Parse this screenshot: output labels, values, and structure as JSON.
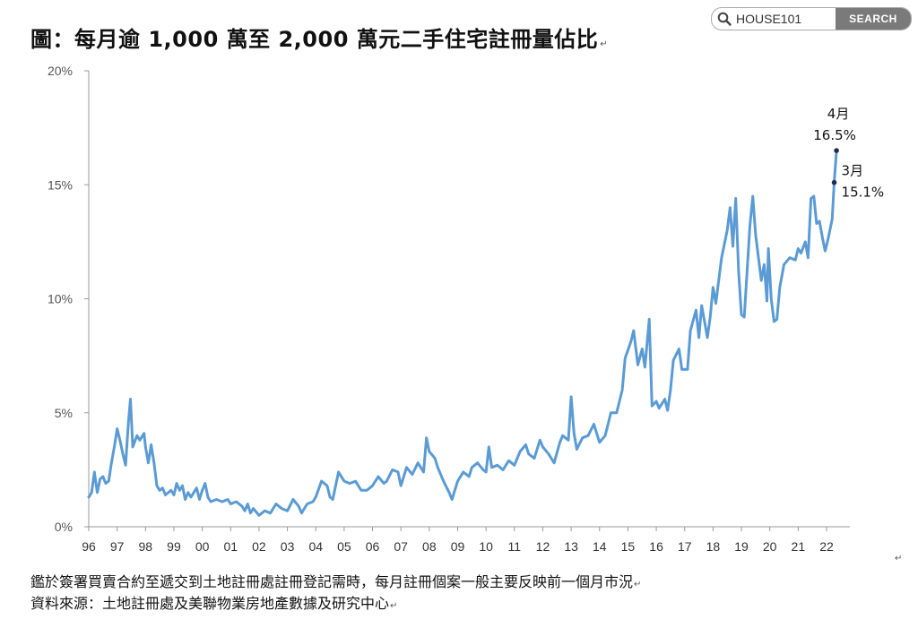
{
  "title": "圖：每月逾 1,000 萬至 2,000 萬元二手住宅註冊量佔比",
  "return_mark": "↵",
  "search": {
    "brand": "HOUSE101",
    "button_label": "SEARCH"
  },
  "notes": [
    "鑑於簽署買賣合約至遞交到土地註冊處註冊登記需時，每月註冊個案一般主要反映前一個月市況",
    "資料來源：土地註冊處及美聯物業房地產數據及研究中心"
  ],
  "colors": {
    "line": "#5b9bd5",
    "axis": "#999999",
    "text": "#111111",
    "search_button": "#7a7a7a"
  },
  "chart_data": {
    "type": "line",
    "title": "",
    "xlabel": "",
    "ylabel": "",
    "x_ticks": [
      "96",
      "97",
      "98",
      "99",
      "00",
      "01",
      "02",
      "03",
      "04",
      "05",
      "06",
      "07",
      "08",
      "09",
      "10",
      "11",
      "12",
      "13",
      "14",
      "15",
      "16",
      "17",
      "18",
      "19",
      "20",
      "21",
      "22"
    ],
    "y_ticks": [
      "0%",
      "5%",
      "10%",
      "15%",
      "20%"
    ],
    "ylim": [
      0,
      20
    ],
    "x_unit": "year (1996 = 96 … 2022 = 22), decimal year",
    "series": [
      {
        "points": [
          [
            1996.0,
            1.3
          ],
          [
            1996.1,
            1.5
          ],
          [
            1996.2,
            2.4
          ],
          [
            1996.3,
            1.5
          ],
          [
            1996.4,
            2.1
          ],
          [
            1996.5,
            2.2
          ],
          [
            1996.6,
            1.9
          ],
          [
            1996.7,
            2.0
          ],
          [
            1996.8,
            2.8
          ],
          [
            1996.9,
            3.5
          ],
          [
            1997.0,
            4.3
          ],
          [
            1997.1,
            3.8
          ],
          [
            1997.2,
            3.2
          ],
          [
            1997.3,
            2.7
          ],
          [
            1997.4,
            4.6
          ],
          [
            1997.47,
            5.6
          ],
          [
            1997.55,
            3.5
          ],
          [
            1997.7,
            4.0
          ],
          [
            1997.8,
            3.8
          ],
          [
            1997.95,
            4.1
          ],
          [
            1998.0,
            3.5
          ],
          [
            1998.1,
            2.8
          ],
          [
            1998.2,
            3.6
          ],
          [
            1998.3,
            2.8
          ],
          [
            1998.4,
            1.8
          ],
          [
            1998.5,
            1.6
          ],
          [
            1998.6,
            1.7
          ],
          [
            1998.7,
            1.4
          ],
          [
            1998.9,
            1.6
          ],
          [
            1999.0,
            1.4
          ],
          [
            1999.1,
            1.9
          ],
          [
            1999.2,
            1.6
          ],
          [
            1999.3,
            1.8
          ],
          [
            1999.4,
            1.2
          ],
          [
            1999.5,
            1.5
          ],
          [
            1999.6,
            1.3
          ],
          [
            1999.8,
            1.7
          ],
          [
            1999.9,
            1.2
          ],
          [
            2000.0,
            1.6
          ],
          [
            2000.1,
            1.9
          ],
          [
            2000.2,
            1.3
          ],
          [
            2000.3,
            1.1
          ],
          [
            2000.5,
            1.2
          ],
          [
            2000.7,
            1.1
          ],
          [
            2000.9,
            1.2
          ],
          [
            2001.0,
            1.0
          ],
          [
            2001.2,
            1.1
          ],
          [
            2001.4,
            0.9
          ],
          [
            2001.5,
            0.7
          ],
          [
            2001.6,
            1.0
          ],
          [
            2001.7,
            0.6
          ],
          [
            2001.8,
            0.8
          ],
          [
            2002.0,
            0.5
          ],
          [
            2002.2,
            0.7
          ],
          [
            2002.4,
            0.6
          ],
          [
            2002.6,
            1.0
          ],
          [
            2002.8,
            0.8
          ],
          [
            2003.0,
            0.7
          ],
          [
            2003.2,
            1.2
          ],
          [
            2003.4,
            0.9
          ],
          [
            2003.5,
            0.6
          ],
          [
            2003.7,
            1.0
          ],
          [
            2003.9,
            1.1
          ],
          [
            2004.0,
            1.3
          ],
          [
            2004.2,
            2.0
          ],
          [
            2004.4,
            1.8
          ],
          [
            2004.5,
            1.3
          ],
          [
            2004.6,
            1.2
          ],
          [
            2004.8,
            2.4
          ],
          [
            2005.0,
            2.0
          ],
          [
            2005.2,
            1.9
          ],
          [
            2005.4,
            2.0
          ],
          [
            2005.6,
            1.6
          ],
          [
            2005.8,
            1.6
          ],
          [
            2006.0,
            1.8
          ],
          [
            2006.2,
            2.2
          ],
          [
            2006.4,
            1.9
          ],
          [
            2006.5,
            2.0
          ],
          [
            2006.7,
            2.5
          ],
          [
            2006.9,
            2.4
          ],
          [
            2007.0,
            1.8
          ],
          [
            2007.2,
            2.6
          ],
          [
            2007.4,
            2.3
          ],
          [
            2007.6,
            2.8
          ],
          [
            2007.8,
            2.4
          ],
          [
            2007.9,
            3.9
          ],
          [
            2008.0,
            3.3
          ],
          [
            2008.2,
            3.0
          ],
          [
            2008.3,
            2.6
          ],
          [
            2008.5,
            2.0
          ],
          [
            2008.7,
            1.5
          ],
          [
            2008.8,
            1.2
          ],
          [
            2009.0,
            2.0
          ],
          [
            2009.2,
            2.4
          ],
          [
            2009.4,
            2.2
          ],
          [
            2009.5,
            2.6
          ],
          [
            2009.7,
            2.8
          ],
          [
            2009.9,
            2.5
          ],
          [
            2010.0,
            2.4
          ],
          [
            2010.1,
            3.5
          ],
          [
            2010.2,
            2.6
          ],
          [
            2010.4,
            2.7
          ],
          [
            2010.6,
            2.5
          ],
          [
            2010.8,
            2.9
          ],
          [
            2011.0,
            2.7
          ],
          [
            2011.2,
            3.3
          ],
          [
            2011.4,
            3.6
          ],
          [
            2011.5,
            3.2
          ],
          [
            2011.7,
            3.0
          ],
          [
            2011.9,
            3.8
          ],
          [
            2012.0,
            3.5
          ],
          [
            2012.2,
            3.2
          ],
          [
            2012.4,
            2.8
          ],
          [
            2012.6,
            3.7
          ],
          [
            2012.7,
            4.0
          ],
          [
            2012.9,
            3.8
          ],
          [
            2013.0,
            5.7
          ],
          [
            2013.1,
            4.1
          ],
          [
            2013.2,
            3.4
          ],
          [
            2013.4,
            3.9
          ],
          [
            2013.6,
            4.0
          ],
          [
            2013.8,
            4.5
          ],
          [
            2013.9,
            4.1
          ],
          [
            2014.0,
            3.7
          ],
          [
            2014.2,
            4.0
          ],
          [
            2014.4,
            5.0
          ],
          [
            2014.6,
            5.0
          ],
          [
            2014.8,
            6.0
          ],
          [
            2014.9,
            7.4
          ],
          [
            2015.1,
            8.1
          ],
          [
            2015.2,
            8.6
          ],
          [
            2015.35,
            7.1
          ],
          [
            2015.5,
            7.8
          ],
          [
            2015.6,
            7.0
          ],
          [
            2015.75,
            9.1
          ],
          [
            2015.85,
            5.3
          ],
          [
            2016.0,
            5.5
          ],
          [
            2016.1,
            5.2
          ],
          [
            2016.3,
            5.6
          ],
          [
            2016.4,
            5.1
          ],
          [
            2016.5,
            6.0
          ],
          [
            2016.6,
            7.3
          ],
          [
            2016.8,
            7.8
          ],
          [
            2016.9,
            6.9
          ],
          [
            2017.1,
            6.9
          ],
          [
            2017.2,
            8.6
          ],
          [
            2017.4,
            9.5
          ],
          [
            2017.5,
            8.3
          ],
          [
            2017.6,
            9.7
          ],
          [
            2017.8,
            8.3
          ],
          [
            2017.9,
            9.2
          ],
          [
            2018.0,
            10.5
          ],
          [
            2018.1,
            9.8
          ],
          [
            2018.3,
            11.8
          ],
          [
            2018.5,
            13.0
          ],
          [
            2018.6,
            14.0
          ],
          [
            2018.7,
            12.3
          ],
          [
            2018.8,
            14.4
          ],
          [
            2018.9,
            11.2
          ],
          [
            2019.0,
            9.3
          ],
          [
            2019.1,
            9.2
          ],
          [
            2019.3,
            13.2
          ],
          [
            2019.4,
            14.5
          ],
          [
            2019.5,
            12.8
          ],
          [
            2019.7,
            10.8
          ],
          [
            2019.8,
            11.5
          ],
          [
            2019.9,
            9.9
          ],
          [
            2019.95,
            12.2
          ],
          [
            2020.05,
            10.0
          ],
          [
            2020.15,
            9.0
          ],
          [
            2020.25,
            9.1
          ],
          [
            2020.35,
            10.5
          ],
          [
            2020.5,
            11.5
          ],
          [
            2020.7,
            11.8
          ],
          [
            2020.9,
            11.7
          ],
          [
            2021.0,
            12.2
          ],
          [
            2021.1,
            12.0
          ],
          [
            2021.25,
            12.5
          ],
          [
            2021.35,
            11.8
          ],
          [
            2021.45,
            14.4
          ],
          [
            2021.55,
            14.5
          ],
          [
            2021.65,
            13.3
          ],
          [
            2021.75,
            13.4
          ],
          [
            2021.85,
            12.7
          ],
          [
            2021.95,
            12.1
          ],
          [
            2022.05,
            12.6
          ],
          [
            2022.2,
            13.5
          ],
          [
            2022.27,
            15.1
          ],
          [
            2022.35,
            16.5
          ]
        ]
      }
    ],
    "annotations": [
      {
        "month": "3月",
        "value_label": "15.1%",
        "x": 2022.27,
        "y": 15.1
      },
      {
        "month": "4月",
        "value_label": "16.5%",
        "x": 2022.35,
        "y": 16.5
      }
    ]
  }
}
